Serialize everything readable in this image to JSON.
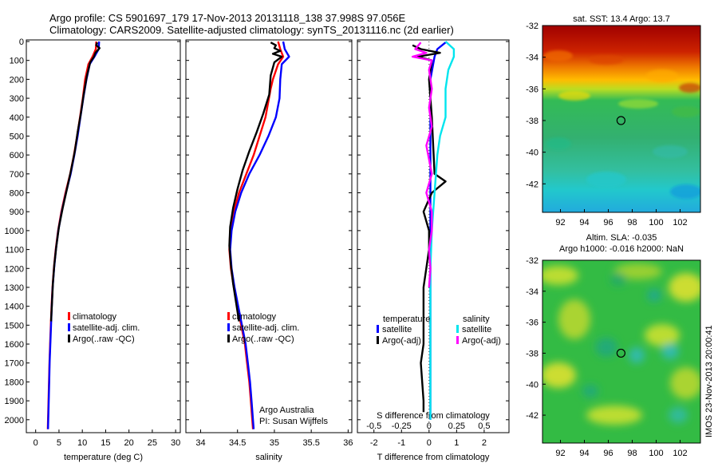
{
  "header": {
    "line1": "Argo profile: CS 5901697_179 17-Nov-2013 20131118_138 37.998S 97.056E",
    "line2": "Climatology: CARS2009. Satellite-adjusted climatology: synTS_20131116.nc (2d earlier)"
  },
  "footer": {
    "credit1": "Argo Australia",
    "credit2": "PI: Susan Wijffels",
    "stamp": "IMOS 23-Nov-2013 20:00:41"
  },
  "colors": {
    "climatology": "#ff0000",
    "satellite": "#0000ff",
    "argo": "#000000",
    "sat_salt": "#00e5ee",
    "argo_salt": "#ff00ff"
  },
  "chart_data": [
    {
      "id": "temperature",
      "type": "line",
      "xlabel": "temperature (deg C)",
      "ylabel": "",
      "xlim": [
        -2,
        31
      ],
      "ylim": [
        2060,
        0
      ],
      "xticks": [
        0,
        5,
        10,
        15,
        20,
        25,
        30
      ],
      "yticks": [
        0,
        100,
        200,
        300,
        400,
        500,
        600,
        700,
        800,
        900,
        1000,
        1100,
        1200,
        1300,
        1400,
        1500,
        1600,
        1700,
        1800,
        1900,
        2000
      ],
      "legend": [
        "climatology",
        "satellite-adj. clim.",
        "Argo(..raw -QC)"
      ],
      "series": [
        {
          "name": "climatology",
          "color": "#ff0000",
          "points": [
            [
              13.0,
              0
            ],
            [
              12.9,
              40
            ],
            [
              12.2,
              80
            ],
            [
              11.3,
              120
            ],
            [
              10.6,
              200
            ],
            [
              10.1,
              300
            ],
            [
              9.5,
              400
            ],
            [
              8.9,
              500
            ],
            [
              8.2,
              600
            ],
            [
              7.4,
              700
            ],
            [
              6.4,
              800
            ],
            [
              5.5,
              900
            ],
            [
              4.8,
              1000
            ],
            [
              4.3,
              1100
            ],
            [
              3.9,
              1200
            ],
            [
              3.6,
              1300
            ],
            [
              3.4,
              1400
            ],
            [
              3.25,
              1500
            ],
            [
              3.1,
              1600
            ],
            [
              2.95,
              1700
            ],
            [
              2.85,
              1800
            ],
            [
              2.75,
              1900
            ],
            [
              2.65,
              2000
            ],
            [
              2.6,
              2050
            ]
          ]
        },
        {
          "name": "satellite-adj. clim.",
          "color": "#0000ff",
          "points": [
            [
              13.6,
              0
            ],
            [
              13.5,
              40
            ],
            [
              12.6,
              80
            ],
            [
              11.6,
              120
            ],
            [
              10.9,
              200
            ],
            [
              10.2,
              300
            ],
            [
              9.6,
              400
            ],
            [
              9.0,
              500
            ],
            [
              8.3,
              600
            ],
            [
              7.5,
              700
            ],
            [
              6.5,
              800
            ],
            [
              5.6,
              900
            ],
            [
              4.85,
              1000
            ],
            [
              4.35,
              1100
            ],
            [
              3.95,
              1200
            ],
            [
              3.65,
              1300
            ],
            [
              3.45,
              1400
            ],
            [
              3.3,
              1500
            ],
            [
              3.15,
              1600
            ],
            [
              3.0,
              1700
            ],
            [
              2.9,
              1800
            ],
            [
              2.8,
              1900
            ],
            [
              2.7,
              2000
            ],
            [
              2.65,
              2050
            ]
          ]
        },
        {
          "name": "Argo(..raw -QC)",
          "color": "#000000",
          "points": [
            [
              13.2,
              5
            ],
            [
              13.0,
              20
            ],
            [
              13.7,
              35
            ],
            [
              12.8,
              60
            ],
            [
              12.5,
              80
            ],
            [
              11.7,
              110
            ],
            [
              11.0,
              180
            ],
            [
              10.3,
              280
            ],
            [
              9.7,
              380
            ],
            [
              9.0,
              480
            ],
            [
              8.4,
              580
            ],
            [
              7.6,
              680
            ],
            [
              6.7,
              780
            ],
            [
              5.8,
              880
            ],
            [
              5.0,
              980
            ],
            [
              4.45,
              1080
            ],
            [
              4.0,
              1180
            ],
            [
              3.7,
              1280
            ],
            [
              3.5,
              1380
            ],
            [
              3.3,
              1480
            ]
          ]
        }
      ]
    },
    {
      "id": "salinity",
      "type": "line",
      "xlabel": "salinity",
      "ylabel": "",
      "xlim": [
        33.8,
        36.05
      ],
      "ylim": [
        2060,
        0
      ],
      "xticks": [
        34,
        34.5,
        35,
        35.5,
        36
      ],
      "xticklabels": [
        "34",
        "34.5",
        "35",
        "35.5",
        "36"
      ],
      "legend": [
        "climatology",
        "satellite-adj. clim.",
        "Argo(..raw -QC)"
      ],
      "series": [
        {
          "name": "climatology",
          "color": "#ff0000",
          "points": [
            [
              35.05,
              0
            ],
            [
              35.08,
              40
            ],
            [
              35.12,
              80
            ],
            [
              35.05,
              120
            ],
            [
              34.98,
              200
            ],
            [
              34.95,
              250
            ],
            [
              34.88,
              400
            ],
            [
              34.8,
              500
            ],
            [
              34.72,
              600
            ],
            [
              34.62,
              700
            ],
            [
              34.52,
              800
            ],
            [
              34.45,
              900
            ],
            [
              34.4,
              1000
            ],
            [
              34.39,
              1100
            ],
            [
              34.41,
              1200
            ],
            [
              34.45,
              1300
            ],
            [
              34.5,
              1400
            ],
            [
              34.55,
              1500
            ],
            [
              34.6,
              1600
            ],
            [
              34.63,
              1700
            ],
            [
              34.66,
              1800
            ],
            [
              34.68,
              1900
            ],
            [
              34.7,
              2000
            ],
            [
              34.71,
              2050
            ]
          ]
        },
        {
          "name": "satellite-adj. clim.",
          "color": "#0000ff",
          "points": [
            [
              35.12,
              0
            ],
            [
              35.14,
              40
            ],
            [
              35.2,
              80
            ],
            [
              35.1,
              120
            ],
            [
              35.08,
              200
            ],
            [
              35.07,
              300
            ],
            [
              35.02,
              400
            ],
            [
              34.92,
              500
            ],
            [
              34.8,
              600
            ],
            [
              34.66,
              700
            ],
            [
              34.55,
              800
            ],
            [
              34.47,
              900
            ],
            [
              34.42,
              1000
            ],
            [
              34.4,
              1100
            ],
            [
              34.42,
              1200
            ],
            [
              34.46,
              1300
            ],
            [
              34.51,
              1400
            ],
            [
              34.56,
              1500
            ],
            [
              34.61,
              1600
            ],
            [
              34.64,
              1700
            ],
            [
              34.67,
              1800
            ],
            [
              34.69,
              1900
            ],
            [
              34.71,
              2000
            ],
            [
              34.72,
              2050
            ]
          ]
        },
        {
          "name": "Argo(..raw -QC)",
          "color": "#000000",
          "points": [
            [
              34.95,
              5
            ],
            [
              35.02,
              20
            ],
            [
              35.0,
              35
            ],
            [
              35.08,
              50
            ],
            [
              34.98,
              65
            ],
            [
              35.1,
              80
            ],
            [
              35.0,
              110
            ],
            [
              34.95,
              180
            ],
            [
              34.93,
              280
            ],
            [
              34.85,
              380
            ],
            [
              34.76,
              480
            ],
            [
              34.66,
              580
            ],
            [
              34.57,
              680
            ],
            [
              34.5,
              780
            ],
            [
              34.44,
              880
            ],
            [
              34.4,
              980
            ],
            [
              34.39,
              1080
            ],
            [
              34.41,
              1180
            ],
            [
              34.44,
              1280
            ],
            [
              34.48,
              1380
            ],
            [
              34.52,
              1480
            ]
          ]
        }
      ]
    },
    {
      "id": "difference",
      "type": "line",
      "xlabel": "T difference from climatology",
      "xlabel_top": "S difference from climatology",
      "xlim": [
        -2.6,
        2.9
      ],
      "ylim": [
        2060,
        0
      ],
      "xticks": [
        -2,
        -1,
        0,
        1,
        2
      ],
      "xticks_top": [
        -2,
        -1,
        0,
        1,
        2
      ],
      "xticklabels_top": [
        "-0.5",
        "-0.25",
        "0",
        "0.25",
        "0.5"
      ],
      "legend_groups": [
        {
          "title": "temperature",
          "items": [
            "satellite",
            "Argo(-adj)"
          ]
        },
        {
          "title": "salinity",
          "items": [
            "satellite",
            "Argo(-adj)"
          ]
        }
      ],
      "series": [
        {
          "name": "temperature satellite",
          "color": "#0000ff",
          "points": [
            [
              0.6,
              5
            ],
            [
              0.3,
              40
            ],
            [
              0.2,
              80
            ],
            [
              0.05,
              200
            ],
            [
              0.05,
              500
            ],
            [
              0.05,
              1000
            ],
            [
              0.05,
              1500
            ],
            [
              0.05,
              2000
            ]
          ]
        },
        {
          "name": "temperature Argo(-adj)",
          "color": "#000000",
          "points": [
            [
              -0.6,
              20
            ],
            [
              -0.3,
              40
            ],
            [
              0.4,
              60
            ],
            [
              -0.4,
              80
            ],
            [
              0.1,
              100
            ],
            [
              0.0,
              200
            ],
            [
              0.1,
              400
            ],
            [
              0.2,
              700
            ],
            [
              0.6,
              740
            ],
            [
              0.1,
              800
            ],
            [
              -0.2,
              900
            ],
            [
              0.0,
              1000
            ],
            [
              0.0,
              1100
            ],
            [
              -0.2,
              1300
            ],
            [
              -0.2,
              1400
            ],
            [
              -0.2,
              1500
            ],
            [
              -0.2,
              1600
            ],
            [
              -0.3,
              1700
            ],
            [
              -0.2,
              1900
            ],
            [
              -0.2,
              1960
            ]
          ]
        },
        {
          "name": "salinity satellite",
          "color": "#00e5ee",
          "points": [
            [
              0.6,
              0
            ],
            [
              0.9,
              40
            ],
            [
              0.9,
              80
            ],
            [
              0.7,
              150
            ],
            [
              0.6,
              250
            ],
            [
              0.6,
              400
            ],
            [
              0.4,
              500
            ],
            [
              0.3,
              600
            ],
            [
              0.2,
              800
            ],
            [
              0.15,
              900
            ],
            [
              0.1,
              1000
            ],
            [
              0.05,
              1200
            ],
            [
              0.05,
              1600
            ],
            [
              0.05,
              2000
            ]
          ]
        },
        {
          "name": "salinity Argo(-adj)",
          "color": "#ff00ff",
          "points": [
            [
              -0.3,
              5
            ],
            [
              -0.5,
              40
            ],
            [
              -0.1,
              60
            ],
            [
              -0.6,
              80
            ],
            [
              0.1,
              100
            ],
            [
              0.0,
              150
            ],
            [
              0.1,
              250
            ],
            [
              0.0,
              350
            ],
            [
              0.1,
              450
            ],
            [
              -0.1,
              550
            ],
            [
              0.1,
              700
            ],
            [
              -0.1,
              800
            ],
            [
              0.1,
              900
            ],
            [
              0.1,
              1000
            ],
            [
              0.0,
              1100
            ],
            [
              0.05,
              1200
            ],
            [
              0.0,
              1300
            ]
          ]
        }
      ]
    },
    {
      "id": "sst-map",
      "type": "heatmap",
      "title": "sat. SST: 13.4  Argo: 13.7",
      "xlim": [
        90.5,
        103.7
      ],
      "ylim": [
        -43.8,
        -32
      ],
      "xticks": [
        92,
        94,
        96,
        98,
        100,
        102
      ],
      "yticks": [
        -32,
        -34,
        -36,
        -38,
        -40,
        -42
      ],
      "marker": [
        97.06,
        -38.0
      ]
    },
    {
      "id": "sla-map",
      "type": "heatmap",
      "title": "Altim. SLA: -0.035",
      "subtitle": "Argo h1000: -0.016  h2000: NaN",
      "xlim": [
        90.5,
        103.7
      ],
      "ylim": [
        -43.8,
        -32
      ],
      "xticks": [
        92,
        94,
        96,
        98,
        100,
        102
      ],
      "yticks": [
        -32,
        -34,
        -36,
        -38,
        -40,
        -42
      ],
      "marker": [
        97.06,
        -38.0
      ]
    }
  ]
}
